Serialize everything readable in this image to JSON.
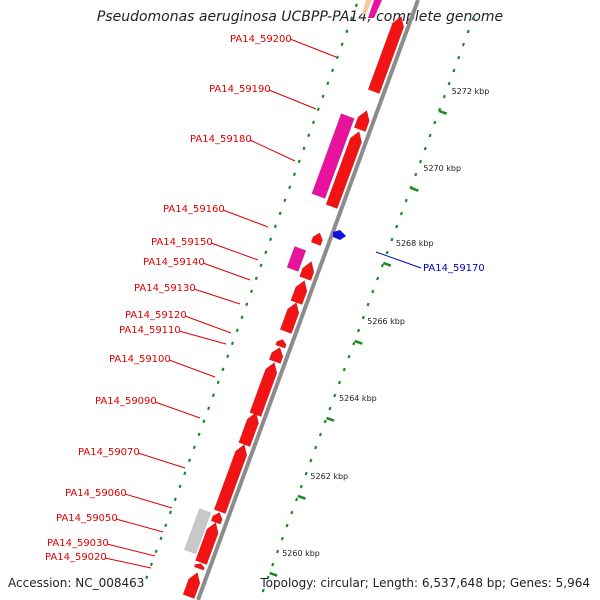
{
  "map": {
    "title": "Pseudomonas aeruginosa UCBPP-PA14, complete genome",
    "accession": "Accession: NC_008463",
    "summary": "Topology: circular; Length: 6,537,648 bp; Genes: 5,964"
  },
  "colors": {
    "gene_red": "#f21414",
    "gene_magenta": "#e8139c",
    "gene_blue": "#1010e0",
    "gene_gray": "#c8c8c8",
    "label_red": "#e00000",
    "label_blue": "#0000c0",
    "tick_green": "#1a8a1a",
    "backbone": "#8c8c8c"
  },
  "scale_labels": [
    {
      "text": "5260 kbp",
      "kbp": 5260
    },
    {
      "text": "5262 kbp",
      "kbp": 5262
    },
    {
      "text": "5264 kbp",
      "kbp": 5264
    },
    {
      "text": "5266 kbp",
      "kbp": 5266
    },
    {
      "text": "5268 kbp",
      "kbp": 5268
    },
    {
      "text": "5270 kbp",
      "kbp": 5270
    },
    {
      "text": "5272 kbp",
      "kbp": 5272
    }
  ],
  "gene_labels": [
    {
      "text": "PA14_59200",
      "side": "left",
      "color": "red"
    },
    {
      "text": "PA14_59190",
      "side": "left",
      "color": "red"
    },
    {
      "text": "PA14_59180",
      "side": "left",
      "color": "red"
    },
    {
      "text": "PA14_59160",
      "side": "left",
      "color": "red"
    },
    {
      "text": "PA14_59150",
      "side": "left",
      "color": "red"
    },
    {
      "text": "PA14_59140",
      "side": "left",
      "color": "red"
    },
    {
      "text": "PA14_59130",
      "side": "left",
      "color": "red"
    },
    {
      "text": "PA14_59120",
      "side": "left",
      "color": "red"
    },
    {
      "text": "PA14_59110",
      "side": "left",
      "color": "red"
    },
    {
      "text": "PA14_59100",
      "side": "left",
      "color": "red"
    },
    {
      "text": "PA14_59090",
      "side": "left",
      "color": "red"
    },
    {
      "text": "PA14_59070",
      "side": "left",
      "color": "red"
    },
    {
      "text": "PA14_59060",
      "side": "left",
      "color": "red"
    },
    {
      "text": "PA14_59050",
      "side": "left",
      "color": "red"
    },
    {
      "text": "PA14_59030",
      "side": "left",
      "color": "red"
    },
    {
      "text": "PA14_59020",
      "side": "left",
      "color": "red"
    },
    {
      "text": "PA14_59170",
      "side": "right",
      "color": "blue"
    }
  ]
}
